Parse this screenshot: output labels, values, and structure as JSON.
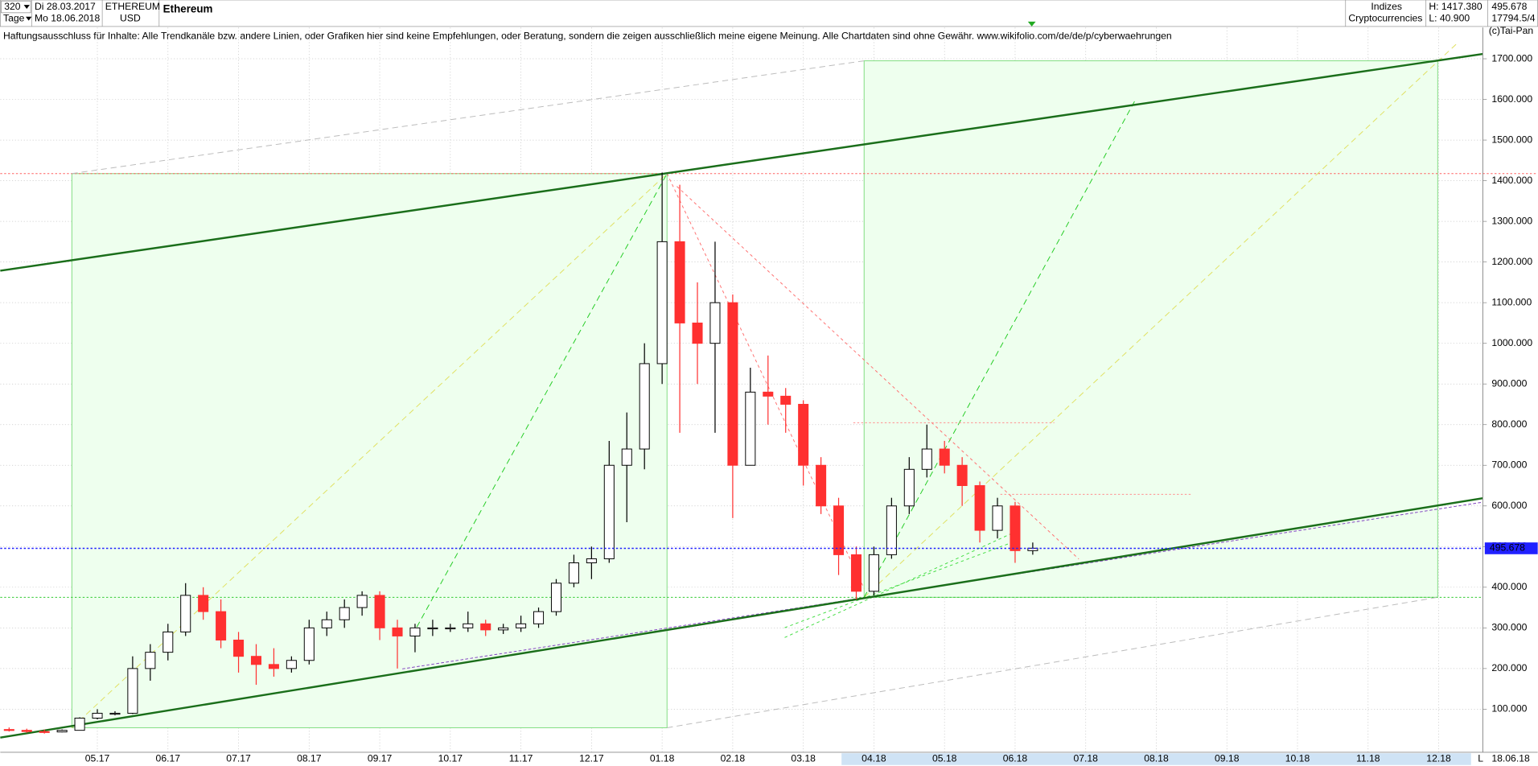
{
  "header": {
    "period": "320",
    "unit": "Tage",
    "start": "Di 28.03.2017",
    "end": "Mo 18.06.2018",
    "symbol": "ETHEREUM",
    "currency": "USD",
    "name": "Ethereum",
    "group": "Indizes",
    "subgroup": "Cryptocurrencies",
    "high": "H: 1417.380",
    "low": "L: 40.900",
    "volume": "17794.5/4",
    "copyright": "(c)Tai-Pan",
    "disclaimer": "Haftungsausschluss für Inhalte: Alle Trendkanäle bzw. andere Linien, oder Grafiken hier sind keine Empfehlungen, oder Beratung, sondern die zeigen ausschließlich meine eigene Meinung. Alle Chartdaten sind ohne Gewähr.  www.wikifolio.com/de/de/p/cyberwaehrungen",
    "footer_mark": "L",
    "footer_date": "18.06.18"
  },
  "chart_data": {
    "type": "candlestick",
    "categories": [
      null,
      null,
      null,
      null,
      null,
      "05.17",
      null,
      null,
      null,
      "06.17",
      null,
      null,
      null,
      "07.17",
      null,
      null,
      null,
      "08.17",
      null,
      null,
      null,
      "09.17",
      null,
      null,
      null,
      "10.17",
      null,
      null,
      null,
      "11.17",
      null,
      null,
      null,
      "12.17",
      null,
      null,
      null,
      "01.18",
      null,
      null,
      null,
      "02.18",
      null,
      null,
      null,
      "03.18",
      null,
      null,
      null,
      "04.18",
      null,
      null,
      null,
      "05.18",
      null,
      null,
      null,
      "06.18",
      null,
      null,
      null,
      "07.18",
      null,
      null,
      null,
      "08.18",
      null,
      null,
      null,
      "09.18",
      null,
      null,
      null,
      "10.18",
      null,
      null,
      null,
      "11.18",
      null,
      null,
      null,
      "12.18",
      null,
      null
    ],
    "open": [
      50,
      48,
      45,
      44,
      48,
      78,
      90,
      90,
      200,
      240,
      290,
      380,
      340,
      270,
      230,
      210,
      200,
      220,
      300,
      320,
      350,
      380,
      300,
      280,
      300,
      300,
      300,
      310,
      295,
      300,
      310,
      340,
      410,
      460,
      470,
      700,
      740,
      950,
      1250,
      1050,
      1000,
      1100,
      700,
      880,
      870,
      850,
      700,
      600,
      480,
      390,
      480,
      600,
      690,
      740,
      700,
      650,
      540,
      600,
      490,
      null,
      null,
      null,
      null,
      null,
      null,
      null,
      null,
      null,
      null,
      null,
      null,
      null,
      null,
      null,
      null,
      null,
      null,
      null,
      null,
      null,
      null,
      null,
      null,
      null
    ],
    "high": [
      55,
      52,
      50,
      50,
      80,
      100,
      95,
      230,
      260,
      310,
      410,
      400,
      370,
      290,
      260,
      250,
      230,
      320,
      340,
      370,
      390,
      390,
      320,
      310,
      320,
      310,
      340,
      320,
      310,
      330,
      350,
      420,
      480,
      500,
      760,
      830,
      1000,
      1420,
      1390,
      1150,
      1250,
      1120,
      940,
      970,
      890,
      860,
      720,
      620,
      500,
      500,
      620,
      720,
      800,
      760,
      720,
      660,
      620,
      610,
      510,
      null,
      null,
      null,
      null,
      null,
      null,
      null,
      null,
      null,
      null,
      null,
      null,
      null,
      null,
      null,
      null,
      null,
      null,
      null,
      null,
      null,
      null,
      null,
      null,
      null
    ],
    "low": [
      45,
      42,
      40,
      43,
      48,
      75,
      85,
      88,
      170,
      220,
      280,
      320,
      250,
      190,
      160,
      180,
      190,
      210,
      280,
      300,
      330,
      270,
      200,
      240,
      280,
      290,
      290,
      280,
      285,
      290,
      300,
      330,
      400,
      420,
      460,
      560,
      690,
      900,
      780,
      900,
      780,
      570,
      700,
      800,
      780,
      650,
      580,
      430,
      370,
      380,
      470,
      580,
      670,
      680,
      600,
      510,
      520,
      460,
      480,
      null,
      null,
      null,
      null,
      null,
      null,
      null,
      null,
      null,
      null,
      null,
      null,
      null,
      null,
      null,
      null,
      null,
      null,
      null,
      null,
      null,
      null,
      null,
      null,
      null
    ],
    "close": [
      48,
      45,
      44,
      48,
      78,
      90,
      90,
      200,
      240,
      290,
      380,
      340,
      270,
      230,
      210,
      200,
      220,
      300,
      320,
      350,
      380,
      300,
      280,
      300,
      300,
      300,
      310,
      295,
      300,
      310,
      340,
      410,
      460,
      470,
      700,
      740,
      950,
      1250,
      1050,
      1000,
      1100,
      700,
      880,
      870,
      850,
      700,
      600,
      480,
      390,
      480,
      600,
      690,
      740,
      700,
      650,
      540,
      600,
      490,
      496,
      null,
      null,
      null,
      null,
      null,
      null,
      null,
      null,
      null,
      null,
      null,
      null,
      null,
      null,
      null,
      null,
      null,
      null,
      null,
      null,
      null,
      null,
      null,
      null,
      null
    ],
    "up_color": "#ffffff",
    "down_color": "#ff3030",
    "last_price": 495.678,
    "ylim": [
      -6,
      1777
    ],
    "yticks": [
      {
        "value": 100,
        "label": "100.000"
      },
      {
        "value": 200,
        "label": "200.000"
      },
      {
        "value": 300,
        "label": "300.000"
      },
      {
        "value": 400,
        "label": "400.000"
      },
      {
        "value": 500,
        "label": "500.000"
      },
      {
        "value": 600,
        "label": "600.000"
      },
      {
        "value": 700,
        "label": "700.000"
      },
      {
        "value": 800,
        "label": "800.000"
      },
      {
        "value": 900,
        "label": "900.000"
      },
      {
        "value": 1000,
        "label": "1000.000"
      },
      {
        "value": 1100,
        "label": "1100.000"
      },
      {
        "value": 1200,
        "label": "1200.000"
      },
      {
        "value": 1300,
        "label": "1300.000"
      },
      {
        "value": 1400,
        "label": "1400.000"
      },
      {
        "value": 1500,
        "label": "1500.000"
      },
      {
        "value": 1600,
        "label": "1600.000"
      },
      {
        "value": 1700,
        "label": "1700.000"
      }
    ],
    "grid": true
  }
}
